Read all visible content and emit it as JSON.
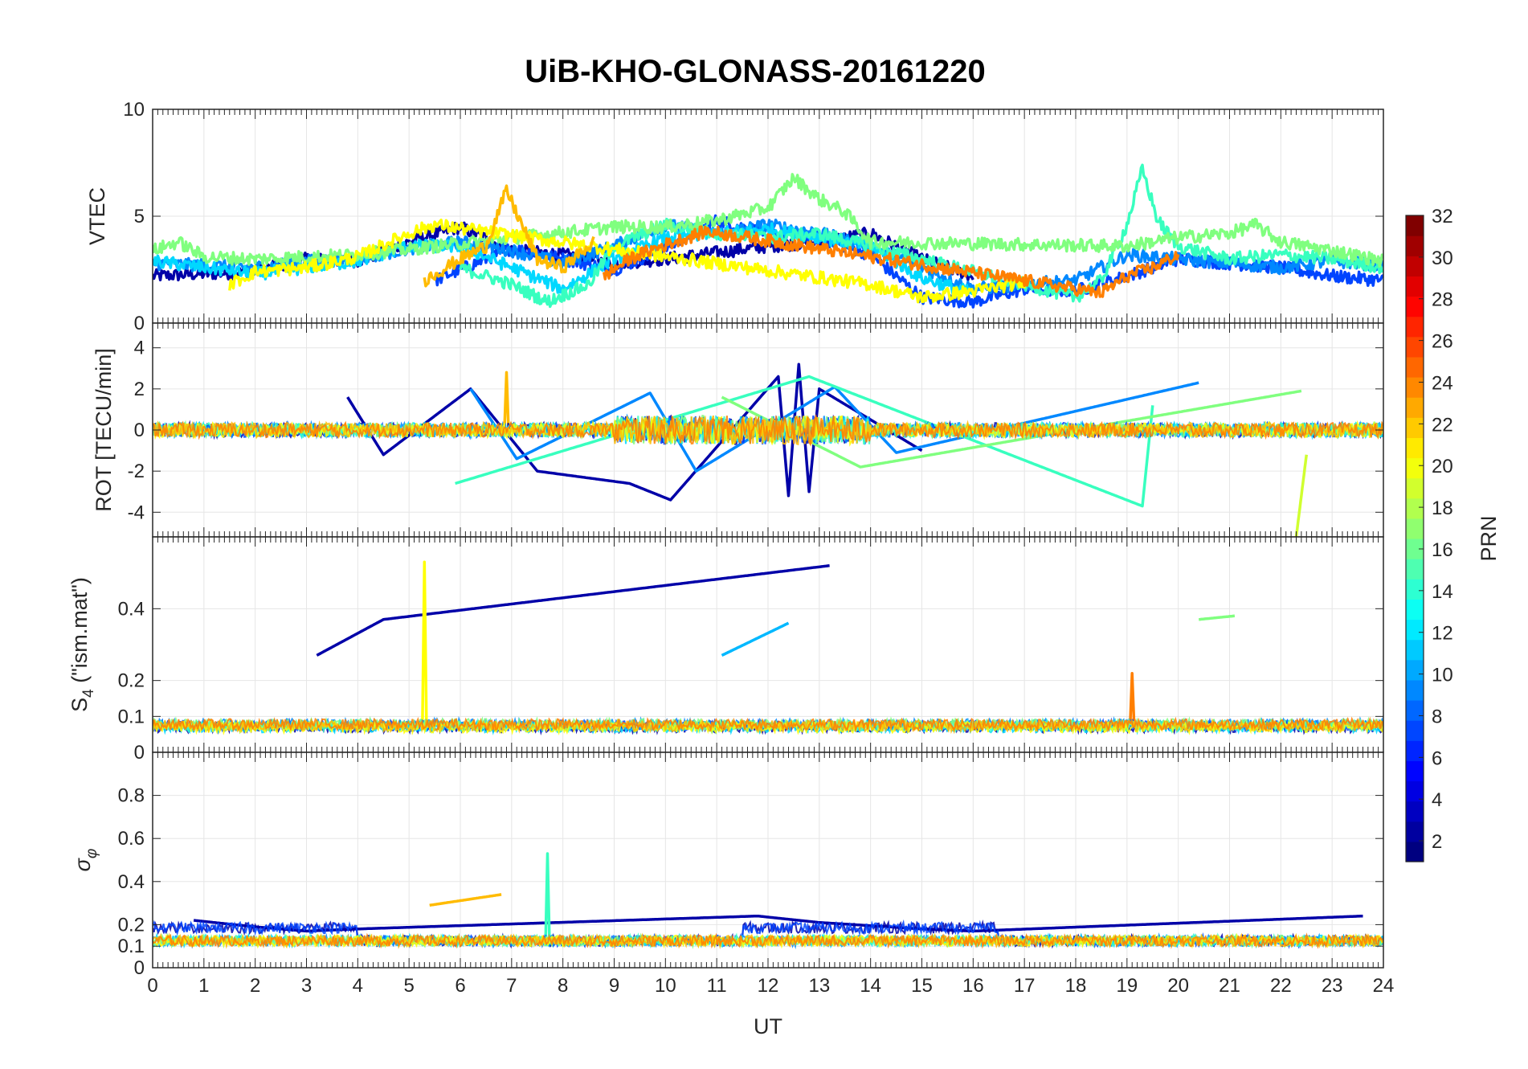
{
  "chart_data": {
    "type": "line",
    "title": "UiB-KHO-GLONASS-20161220",
    "xlabel": "UT",
    "xlim": [
      0,
      24
    ],
    "x_ticks": [
      "0",
      "1",
      "2",
      "3",
      "4",
      "5",
      "6",
      "7",
      "8",
      "9",
      "10",
      "11",
      "12",
      "13",
      "14",
      "15",
      "16",
      "17",
      "18",
      "19",
      "20",
      "21",
      "22",
      "23",
      "24"
    ],
    "grid": true,
    "panels": [
      {
        "ylabel": "VTEC",
        "ylim": [
          0,
          10
        ],
        "y_ticks": [
          "0",
          "5",
          "10"
        ],
        "series": [
          {
            "prn": 2,
            "color": "#0000a8",
            "x": [
              0,
              1,
              2,
              3,
              4,
              5,
              6,
              7,
              8,
              9,
              10,
              11,
              12,
              13,
              14,
              15,
              16
            ],
            "y": [
              2.2,
              2.3,
              2.4,
              3.0,
              2.9,
              3.8,
              4.5,
              3.4,
              3.2,
              2.8,
              3.0,
              3.3,
              3.6,
              3.8,
              4.2,
              3.0,
              2.2
            ]
          },
          {
            "prn": 6,
            "color": "#0044ff",
            "x": [
              5.5,
              6,
              7,
              8,
              9,
              10,
              11,
              12,
              13,
              14,
              15,
              16,
              17,
              18,
              19,
              20,
              21,
              22,
              23,
              24
            ],
            "y": [
              2.0,
              2.5,
              3.5,
              3.0,
              2.5,
              3.5,
              4.8,
              4.2,
              4.0,
              3.2,
              1.2,
              1.0,
              1.6,
              1.5,
              2.2,
              3.0,
              2.8,
              2.6,
              2.2,
              2.0
            ]
          },
          {
            "prn": 9,
            "color": "#0088ff",
            "x": [
              0,
              1,
              2,
              3,
              4,
              5,
              6,
              7,
              8,
              9,
              10,
              11,
              12,
              13,
              14,
              16,
              18,
              19,
              20,
              21,
              22,
              23,
              24
            ],
            "y": [
              2.8,
              2.7,
              2.6,
              2.9,
              3.0,
              3.5,
              3.8,
              3.4,
              2.8,
              3.6,
              4.6,
              4.2,
              4.6,
              4.2,
              3.6,
              1.6,
              2.0,
              3.2,
              3.0,
              2.8,
              2.6,
              2.9,
              2.7
            ]
          },
          {
            "prn": 12,
            "color": "#00d8ff",
            "x": [
              0,
              1,
              2,
              3,
              4,
              5,
              6,
              7,
              8,
              9,
              10,
              11,
              12,
              13,
              14,
              15,
              16
            ],
            "y": [
              2.9,
              2.6,
              2.3,
              2.6,
              2.9,
              3.6,
              3.6,
              2.6,
              1.6,
              3.0,
              4.0,
              4.2,
              4.4,
              4.0,
              3.6,
              2.1,
              1.4
            ]
          },
          {
            "prn": 14,
            "color": "#38ffbf",
            "x": [
              6,
              7,
              7.7,
              8.5,
              9,
              10,
              11,
              12,
              13,
              14,
              18,
              18.5,
              19,
              19.3,
              19.6,
              20,
              21,
              22,
              23,
              24
            ],
            "y": [
              2.6,
              1.8,
              1.0,
              1.8,
              3.6,
              4.6,
              4.2,
              4.0,
              4.2,
              3.6,
              1.2,
              2.0,
              4.6,
              7.2,
              4.8,
              3.6,
              3.0,
              3.2,
              3.0,
              2.6
            ]
          },
          {
            "prn": 16,
            "color": "#80ff7f",
            "x": [
              0,
              0.5,
              1,
              2,
              3,
              4,
              9,
              10,
              11,
              12,
              12.5,
              13,
              13.5,
              14,
              19,
              20,
              21,
              21.5,
              22,
              23,
              24
            ],
            "y": [
              3.4,
              3.8,
              3.1,
              3.0,
              3.1,
              3.2,
              4.5,
              4.5,
              4.8,
              5.4,
              6.8,
              5.8,
              5.2,
              3.8,
              3.6,
              4.0,
              4.2,
              4.6,
              3.8,
              3.4,
              2.9
            ]
          },
          {
            "prn": 20,
            "color": "#ffff00",
            "x": [
              1.5,
              2,
              3,
              4,
              5,
              5.5,
              14,
              15,
              16,
              17
            ],
            "y": [
              1.8,
              2.4,
              2.6,
              3.1,
              4.2,
              4.6,
              1.8,
              1.2,
              1.5,
              1.9
            ]
          },
          {
            "prn": 22,
            "color": "#ffbb00",
            "x": [
              5.3,
              6,
              6.5,
              6.9,
              7.5,
              8,
              8.6
            ],
            "y": [
              2.0,
              3.0,
              3.6,
              6.2,
              3.0,
              2.6,
              3.8
            ]
          },
          {
            "prn": 24,
            "color": "#ff7f00",
            "x": [
              8.8,
              9.3,
              9.8,
              10.3,
              10.8,
              17.5,
              18.5,
              19,
              19.5,
              20
            ],
            "y": [
              2.2,
              3.0,
              3.5,
              3.9,
              4.3,
              1.8,
              1.4,
              2.2,
              2.6,
              3.2
            ]
          }
        ]
      },
      {
        "ylabel": "ROT [TECU/min]",
        "ylim": [
          -5.2,
          5.2
        ],
        "y_ticks": [
          "-4",
          "-2",
          "0",
          "2",
          "4"
        ],
        "series": [
          {
            "prn": 2,
            "color": "#0000a8",
            "x": [
              3.8,
              4.5,
              6.2,
              7.5,
              9.3,
              10.1,
              12.2,
              12.4,
              12.6,
              12.8,
              13.0,
              15.0
            ],
            "y": [
              1.6,
              -1.2,
              2.0,
              -2.0,
              -2.6,
              -3.4,
              2.6,
              -3.2,
              3.2,
              -3.0,
              2.0,
              -1.0
            ]
          },
          {
            "prn": 9,
            "color": "#0088ff",
            "x": [
              6.2,
              7.1,
              9.7,
              10.6,
              13.3,
              14.5,
              20.4
            ],
            "y": [
              2.0,
              -1.4,
              1.8,
              -2.0,
              2.1,
              -1.1,
              2.3
            ]
          },
          {
            "prn": 14,
            "color": "#38ffbf",
            "x": [
              5.9,
              12.8,
              19.3,
              19.5
            ],
            "y": [
              -2.6,
              2.6,
              -3.7,
              1.2
            ]
          },
          {
            "prn": 16,
            "color": "#80ff7f",
            "x": [
              11.1,
              13.8,
              22.4
            ],
            "y": [
              1.6,
              -1.8,
              1.9
            ]
          },
          {
            "prn": 19,
            "color": "#d0ff30",
            "x": [
              22.3,
              22.5
            ],
            "y": [
              -5.2,
              -1.2
            ]
          },
          {
            "prn": 22,
            "color": "#ffbb00",
            "x": [
              6.9
            ],
            "y": [
              2.8
            ]
          }
        ]
      },
      {
        "ylabel": "S4 (\"ism.mat\")",
        "ylim": [
          0,
          0.6
        ],
        "y_ticks": [
          "0",
          "0.1",
          "0.2",
          "0.4"
        ],
        "series": [
          {
            "prn": 2,
            "color": "#0000a8",
            "x": [
              3.2,
              4.5,
              13.2
            ],
            "y": [
              0.27,
              0.37,
              0.52
            ]
          },
          {
            "prn": 10,
            "color": "#00b8ff",
            "x": [
              11.1,
              12.4
            ],
            "y": [
              0.27,
              0.36
            ]
          },
          {
            "prn": 16,
            "color": "#80ff7f",
            "x": [
              20.4,
              21.1
            ],
            "y": [
              0.37,
              0.38
            ]
          },
          {
            "prn": 20,
            "color": "#ffff00",
            "x": [
              5.3
            ],
            "y": [
              0.53
            ]
          },
          {
            "prn": 24,
            "color": "#ff7f00",
            "x": [
              19.1
            ],
            "y": [
              0.22
            ]
          }
        ]
      },
      {
        "ylabel": "σφ",
        "ylim": [
          0,
          1
        ],
        "y_ticks": [
          "0",
          "0.1",
          "0.2",
          "0.4",
          "0.6",
          "0.8"
        ],
        "series": [
          {
            "prn": 2,
            "color": "#0000a8",
            "x": [
              0.8,
              2,
              3,
              4,
              11.8,
              13,
              15,
              16,
              23.6
            ],
            "y": [
              0.22,
              0.19,
              0.17,
              0.18,
              0.24,
              0.21,
              0.18,
              0.17,
              0.24
            ]
          },
          {
            "prn": 14,
            "color": "#38ffbf",
            "x": [
              7.7
            ],
            "y": [
              0.53
            ]
          },
          {
            "prn": 22,
            "color": "#ffbb00",
            "x": [
              5.4,
              6.8
            ],
            "y": [
              0.29,
              0.34
            ]
          }
        ]
      }
    ],
    "colorbar": {
      "label": "PRN",
      "range": [
        1,
        32
      ],
      "ticks": [
        "2",
        "4",
        "6",
        "8",
        "10",
        "12",
        "14",
        "16",
        "18",
        "20",
        "22",
        "24",
        "26",
        "28",
        "30",
        "32"
      ],
      "colormap": "jet"
    }
  }
}
